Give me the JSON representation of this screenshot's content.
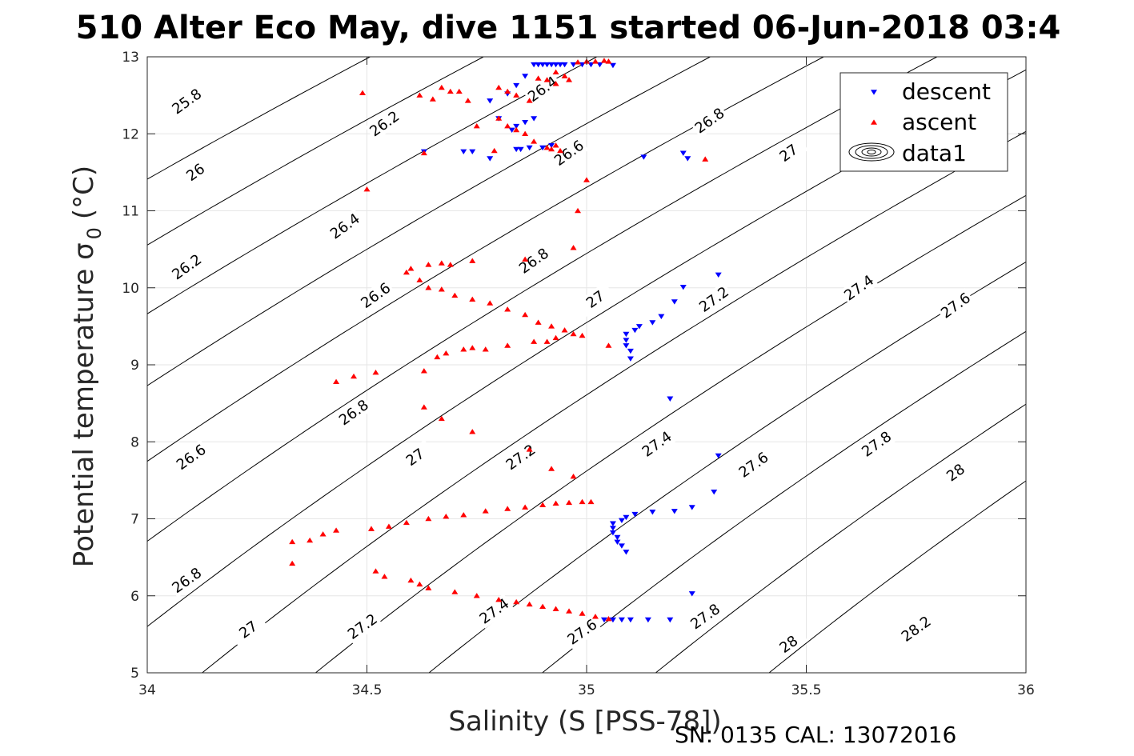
{
  "chart_data": {
    "type": "scatter",
    "title": "510 Alter Eco May, dive 1151 started 06-Jun-2018 03:4",
    "xlabel": "Salinity (S [PSS-78])",
    "ylabel": "Potential temperature σ",
    "ylabel_sub": "0",
    "ylabel_unit": "(°C)",
    "xlim": [
      34,
      36
    ],
    "ylim": [
      5,
      13
    ],
    "xticks": [
      34,
      34.5,
      35,
      35.5,
      36
    ],
    "xtick_labels": [
      "34",
      "34.5",
      "35",
      "35.5",
      "36"
    ],
    "yticks": [
      5,
      6,
      7,
      8,
      9,
      10,
      11,
      12,
      13
    ],
    "ytick_labels": [
      "5",
      "6",
      "7",
      "8",
      "9",
      "10",
      "11",
      "12",
      "13"
    ],
    "grid": true,
    "legend_position": "top-right",
    "legend": [
      {
        "label": "descent",
        "marker": "triangle-down",
        "color": "#0000ff"
      },
      {
        "label": "ascent",
        "marker": "triangle-up",
        "color": "#ff0000"
      },
      {
        "label": "data1",
        "marker": "contour",
        "color": "#000000"
      }
    ],
    "contours": {
      "levels": [
        25.8,
        26,
        26.2,
        26.4,
        26.6,
        26.8,
        27,
        27.2,
        27.4,
        27.6,
        27.8,
        28,
        28.2
      ],
      "labels": [
        {
          "text": "25.8",
          "s": 34.09,
          "t": 12.42
        },
        {
          "text": "26",
          "s": 34.11,
          "t": 11.5
        },
        {
          "text": "26.2",
          "s": 34.54,
          "t": 12.13
        },
        {
          "text": "26.2",
          "s": 34.09,
          "t": 10.27
        },
        {
          "text": "26.4",
          "s": 34.45,
          "t": 10.8
        },
        {
          "text": "26.4",
          "s": 34.9,
          "t": 12.58
        },
        {
          "text": "26.6",
          "s": 34.1,
          "t": 7.8
        },
        {
          "text": "26.6",
          "s": 34.52,
          "t": 9.9
        },
        {
          "text": "26.6",
          "s": 34.96,
          "t": 11.75
        },
        {
          "text": "26.8",
          "s": 34.09,
          "t": 6.2
        },
        {
          "text": "26.8",
          "s": 34.47,
          "t": 8.38
        },
        {
          "text": "26.8",
          "s": 34.88,
          "t": 10.35
        },
        {
          "text": "26.8",
          "s": 35.28,
          "t": 12.17
        },
        {
          "text": "27",
          "s": 34.23,
          "t": 5.56
        },
        {
          "text": "27",
          "s": 34.61,
          "t": 7.8
        },
        {
          "text": "27",
          "s": 35.02,
          "t": 9.85
        },
        {
          "text": "27",
          "s": 35.46,
          "t": 11.75
        },
        {
          "text": "27.2",
          "s": 34.49,
          "t": 5.6
        },
        {
          "text": "27.2",
          "s": 34.85,
          "t": 7.8
        },
        {
          "text": "27.2",
          "s": 35.29,
          "t": 9.85
        },
        {
          "text": "27.4",
          "s": 34.79,
          "t": 5.8
        },
        {
          "text": "27.4",
          "s": 35.16,
          "t": 7.97
        },
        {
          "text": "27.4",
          "s": 35.62,
          "t": 10.0
        },
        {
          "text": "27.6",
          "s": 34.99,
          "t": 5.53
        },
        {
          "text": "27.6",
          "s": 35.38,
          "t": 7.7
        },
        {
          "text": "27.6",
          "s": 35.84,
          "t": 9.77
        },
        {
          "text": "27.8",
          "s": 35.27,
          "t": 5.73
        },
        {
          "text": "27.8",
          "s": 35.66,
          "t": 7.97
        },
        {
          "text": "28",
          "s": 35.46,
          "t": 5.37
        },
        {
          "text": "28",
          "s": 35.84,
          "t": 7.6
        },
        {
          "text": "28.2",
          "s": 35.75,
          "t": 5.57
        }
      ]
    },
    "series": [
      {
        "name": "descent",
        "marker": "triangle-down",
        "color": "#0000ff",
        "points": [
          [
            34.88,
            12.9
          ],
          [
            34.89,
            12.9
          ],
          [
            34.9,
            12.9
          ],
          [
            34.91,
            12.9
          ],
          [
            34.92,
            12.9
          ],
          [
            34.93,
            12.9
          ],
          [
            34.94,
            12.9
          ],
          [
            34.95,
            12.9
          ],
          [
            34.97,
            12.9
          ],
          [
            34.99,
            12.9
          ],
          [
            35.01,
            12.9
          ],
          [
            35.03,
            12.9
          ],
          [
            35.06,
            12.89
          ],
          [
            34.86,
            12.75
          ],
          [
            34.84,
            12.63
          ],
          [
            34.82,
            12.52
          ],
          [
            34.78,
            12.43
          ],
          [
            34.8,
            12.2
          ],
          [
            34.83,
            12.05
          ],
          [
            34.84,
            12.1
          ],
          [
            34.86,
            12.15
          ],
          [
            34.88,
            12.2
          ],
          [
            34.63,
            11.77
          ],
          [
            34.72,
            11.77
          ],
          [
            34.74,
            11.77
          ],
          [
            34.78,
            11.68
          ],
          [
            34.84,
            11.8
          ],
          [
            34.85,
            11.8
          ],
          [
            34.87,
            11.82
          ],
          [
            34.9,
            11.82
          ],
          [
            34.92,
            11.85
          ],
          [
            35.13,
            11.7
          ],
          [
            35.22,
            11.75
          ],
          [
            35.23,
            11.68
          ],
          [
            35.3,
            10.17
          ],
          [
            35.22,
            10.01
          ],
          [
            35.2,
            9.82
          ],
          [
            35.17,
            9.63
          ],
          [
            35.15,
            9.55
          ],
          [
            35.12,
            9.5
          ],
          [
            35.11,
            9.45
          ],
          [
            35.09,
            9.4
          ],
          [
            35.09,
            9.32
          ],
          [
            35.09,
            9.25
          ],
          [
            35.1,
            9.18
          ],
          [
            35.1,
            9.08
          ],
          [
            35.19,
            8.56
          ],
          [
            35.3,
            7.82
          ],
          [
            35.29,
            7.35
          ],
          [
            35.24,
            7.15
          ],
          [
            35.2,
            7.1
          ],
          [
            35.15,
            7.09
          ],
          [
            35.11,
            7.06
          ],
          [
            35.09,
            7.02
          ],
          [
            35.08,
            6.98
          ],
          [
            35.06,
            6.94
          ],
          [
            35.06,
            6.88
          ],
          [
            35.06,
            6.82
          ],
          [
            35.07,
            6.76
          ],
          [
            35.07,
            6.7
          ],
          [
            35.08,
            6.65
          ],
          [
            35.09,
            6.57
          ],
          [
            35.24,
            6.03
          ],
          [
            35.04,
            5.69
          ],
          [
            35.06,
            5.69
          ],
          [
            35.08,
            5.69
          ],
          [
            35.1,
            5.69
          ],
          [
            35.14,
            5.69
          ],
          [
            35.19,
            5.69
          ]
        ]
      },
      {
        "name": "ascent",
        "marker": "triangle-up",
        "color": "#ff0000",
        "points": [
          [
            34.98,
            12.93
          ],
          [
            35.0,
            12.94
          ],
          [
            35.02,
            12.94
          ],
          [
            35.04,
            12.95
          ],
          [
            35.05,
            12.94
          ],
          [
            34.93,
            12.8
          ],
          [
            34.95,
            12.75
          ],
          [
            34.96,
            12.7
          ],
          [
            34.93,
            12.65
          ],
          [
            34.91,
            12.7
          ],
          [
            34.89,
            12.72
          ],
          [
            34.49,
            12.53
          ],
          [
            34.62,
            12.5
          ],
          [
            34.65,
            12.45
          ],
          [
            34.67,
            12.6
          ],
          [
            34.69,
            12.55
          ],
          [
            34.71,
            12.55
          ],
          [
            34.73,
            12.43
          ],
          [
            34.8,
            12.6
          ],
          [
            34.82,
            12.55
          ],
          [
            34.84,
            12.5
          ],
          [
            34.87,
            12.43
          ],
          [
            34.75,
            12.1
          ],
          [
            34.8,
            12.2
          ],
          [
            34.82,
            12.1
          ],
          [
            34.84,
            12.05
          ],
          [
            34.86,
            12.0
          ],
          [
            34.88,
            11.9
          ],
          [
            34.91,
            11.82
          ],
          [
            34.92,
            11.8
          ],
          [
            34.93,
            11.85
          ],
          [
            34.94,
            11.78
          ],
          [
            34.63,
            11.75
          ],
          [
            34.79,
            11.78
          ],
          [
            35.27,
            11.67
          ],
          [
            34.5,
            11.28
          ],
          [
            35.0,
            11.4
          ],
          [
            34.98,
            11.0
          ],
          [
            34.97,
            10.52
          ],
          [
            34.59,
            10.2
          ],
          [
            34.6,
            10.25
          ],
          [
            34.62,
            10.1
          ],
          [
            34.64,
            10.0
          ],
          [
            34.67,
            9.98
          ],
          [
            34.7,
            9.9
          ],
          [
            34.74,
            9.85
          ],
          [
            34.78,
            9.8
          ],
          [
            34.82,
            9.72
          ],
          [
            34.86,
            9.65
          ],
          [
            34.89,
            9.55
          ],
          [
            34.92,
            9.5
          ],
          [
            34.95,
            9.45
          ],
          [
            34.97,
            9.4
          ],
          [
            34.99,
            9.38
          ],
          [
            34.93,
            9.35
          ],
          [
            34.91,
            9.3
          ],
          [
            34.88,
            9.3
          ],
          [
            34.64,
            10.3
          ],
          [
            34.67,
            10.32
          ],
          [
            34.69,
            10.3
          ],
          [
            34.74,
            10.35
          ],
          [
            34.86,
            10.37
          ],
          [
            35.05,
            9.25
          ],
          [
            34.43,
            8.78
          ],
          [
            34.47,
            8.85
          ],
          [
            34.52,
            8.9
          ],
          [
            34.63,
            8.92
          ],
          [
            34.66,
            9.1
          ],
          [
            34.68,
            9.15
          ],
          [
            34.72,
            9.2
          ],
          [
            34.74,
            9.22
          ],
          [
            34.77,
            9.2
          ],
          [
            34.82,
            9.25
          ],
          [
            34.63,
            8.45
          ],
          [
            34.67,
            8.3
          ],
          [
            34.74,
            8.13
          ],
          [
            34.87,
            7.9
          ],
          [
            34.92,
            7.65
          ],
          [
            34.97,
            7.55
          ],
          [
            34.33,
            6.7
          ],
          [
            34.37,
            6.72
          ],
          [
            34.4,
            6.8
          ],
          [
            34.43,
            6.85
          ],
          [
            34.51,
            6.87
          ],
          [
            34.55,
            6.9
          ],
          [
            34.59,
            6.95
          ],
          [
            34.64,
            7.0
          ],
          [
            34.68,
            7.03
          ],
          [
            34.72,
            7.05
          ],
          [
            34.77,
            7.1
          ],
          [
            34.82,
            7.13
          ],
          [
            34.86,
            7.15
          ],
          [
            34.9,
            7.18
          ],
          [
            34.93,
            7.2
          ],
          [
            34.96,
            7.21
          ],
          [
            34.99,
            7.22
          ],
          [
            35.01,
            7.22
          ],
          [
            34.33,
            6.42
          ],
          [
            34.52,
            6.32
          ],
          [
            34.54,
            6.25
          ],
          [
            34.6,
            6.2
          ],
          [
            34.62,
            6.15
          ],
          [
            34.64,
            6.1
          ],
          [
            34.7,
            6.05
          ],
          [
            34.75,
            6.0
          ],
          [
            34.8,
            5.95
          ],
          [
            34.84,
            5.92
          ],
          [
            34.87,
            5.89
          ],
          [
            34.9,
            5.86
          ],
          [
            34.93,
            5.83
          ],
          [
            34.96,
            5.8
          ],
          [
            34.99,
            5.77
          ],
          [
            35.02,
            5.73
          ],
          [
            35.05,
            5.7
          ]
        ]
      }
    ]
  },
  "footer": {
    "text": "SN: 0135  CAL: 13072016"
  }
}
